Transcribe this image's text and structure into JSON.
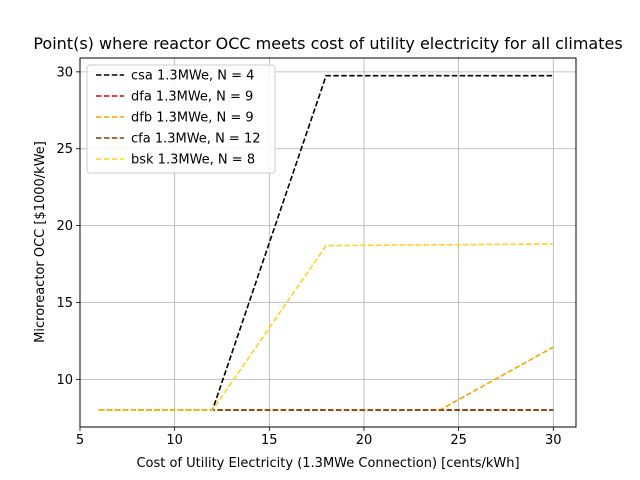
{
  "chart_data": {
    "type": "line",
    "title": "Point(s) where reactor OCC meets cost of utility electricity for all climates",
    "xlabel": "Cost of Utility Electricity (1.3MWe Connection) [cents/kWh]",
    "ylabel": "Microreactor OCC [$1000/kWe]",
    "xlim": [
      5,
      31.2
    ],
    "ylim": [
      6.9,
      30.9
    ],
    "xticks": [
      5,
      10,
      15,
      20,
      25,
      30
    ],
    "yticks": [
      10,
      15,
      20,
      25,
      30
    ],
    "grid": true,
    "legend_position": "top-left",
    "series": [
      {
        "name": "csa 1.3MWe, N = 4",
        "color": "#000000",
        "dash": "dashed",
        "x": [
          6,
          12,
          18,
          30
        ],
        "y": [
          8.0,
          8.0,
          29.75,
          29.75
        ]
      },
      {
        "name": "dfa 1.3MWe, N = 9",
        "color": "#dd0000",
        "dash": "dashed",
        "x": [
          6,
          12,
          18,
          24,
          30
        ],
        "y": [
          8.0,
          8.0,
          8.0,
          8.0,
          8.0
        ]
      },
      {
        "name": "dfb 1.3MWe, N = 9",
        "color": "#f5a800",
        "dash": "dashed",
        "x": [
          6,
          12,
          18,
          24,
          30
        ],
        "y": [
          8.0,
          8.0,
          8.0,
          8.0,
          12.1
        ]
      },
      {
        "name": "cfa 1.3MWe, N = 12",
        "color": "#8b3a00",
        "dash": "dashed",
        "x": [
          6,
          12,
          18,
          24,
          30
        ],
        "y": [
          8.0,
          8.0,
          8.0,
          8.0,
          8.0
        ]
      },
      {
        "name": "bsk 1.3MWe, N = 8",
        "color": "#ffd21f",
        "dash": "dashed",
        "x": [
          6,
          12,
          18,
          30
        ],
        "y": [
          8.0,
          8.0,
          18.7,
          18.8
        ]
      }
    ]
  }
}
